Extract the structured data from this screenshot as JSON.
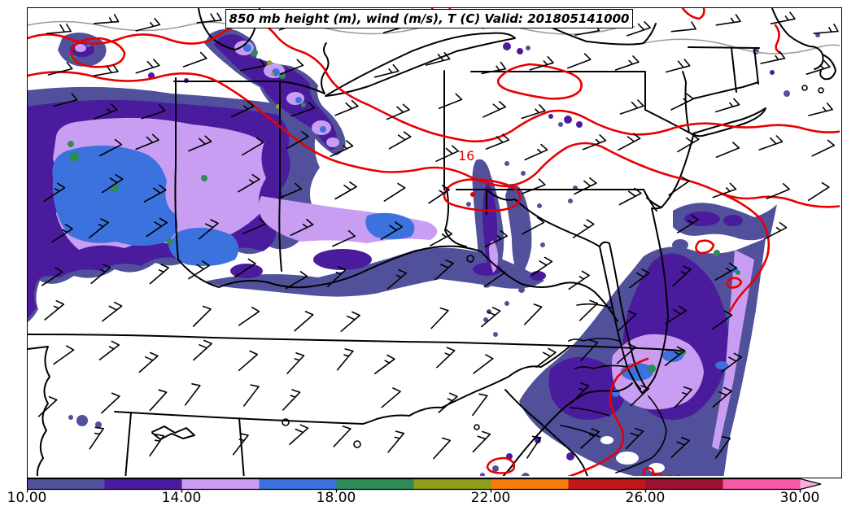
{
  "title": {
    "text": "850 mb height (m), wind (m/s), T (C) Valid: 201805141000"
  },
  "map": {
    "contour_labels": [
      {
        "text": "16",
        "color": "#e00000"
      },
      {
        "text": "18",
        "color": "#e00000"
      }
    ]
  },
  "colorbar": {
    "ticks": [
      "10.00",
      "14.00",
      "18.00",
      "22.00",
      "26.00",
      "30.00"
    ],
    "range": [
      10,
      30
    ],
    "segment_values": [
      [
        10,
        12
      ],
      [
        12,
        14
      ],
      [
        14,
        16
      ],
      [
        16,
        18
      ],
      [
        18,
        20
      ],
      [
        20,
        22
      ],
      [
        22,
        24
      ],
      [
        24,
        26
      ],
      [
        26,
        28
      ],
      [
        28,
        30
      ]
    ],
    "segment_colors": [
      "#50519a",
      "#4b1b9e",
      "#c99ef2",
      "#3b72dd",
      "#2e8b57",
      "#8f9e1b",
      "#f67d0b",
      "#c01717",
      "#9c1033",
      "#f659a8"
    ],
    "arrow_color": "#f9aede"
  },
  "colors": {
    "temperature_contour_red": "#e80000",
    "boundary_black": "#000000",
    "height_contour_gray": "#9a9a9a",
    "wind_barb_black": "#000000",
    "background": "#ffffff"
  },
  "chart_data": {
    "type": "heatmap",
    "title": "850 mb height (m), wind (m/s), T (C) Valid: 201805141000",
    "shaded_field": "temperature_C",
    "colorbar_ticks": [
      10.0,
      14.0,
      18.0,
      22.0,
      26.0,
      30.0
    ],
    "colorbar_interval": 2,
    "colorbar_range": [
      10,
      30
    ],
    "labeled_red_contours_C": [
      16,
      18
    ],
    "overlays": [
      "wind barbs (m/s)",
      "red temperature contours (C)",
      "state boundaries"
    ],
    "legend_position": "bottom horizontal colorbar with right arrow extension"
  }
}
